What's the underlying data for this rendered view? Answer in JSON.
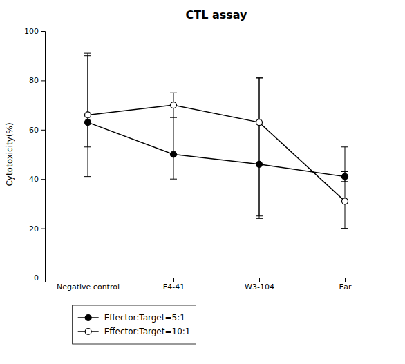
{
  "chart_data": {
    "type": "line",
    "title": "CTL assay",
    "ylabel": "Cytotoxicity(%)",
    "categories": [
      "Negative control",
      "F4-41",
      "W3-104",
      "Ear"
    ],
    "series": [
      {
        "name": "Effector:Target=5:1",
        "color": "black",
        "marker": "filled-circle",
        "values": [
          63,
          50,
          46,
          41
        ],
        "error_upper": [
          27,
          15,
          35,
          2
        ],
        "error_lower": [
          22,
          10,
          22,
          2
        ]
      },
      {
        "name": "Effector:Target=10:1",
        "color": "black",
        "marker": "open-circle",
        "values": [
          66,
          70,
          63,
          31
        ],
        "error_upper": [
          25,
          5,
          18,
          22
        ],
        "error_lower": [
          13,
          5,
          38,
          11
        ]
      }
    ],
    "ylim": [
      0,
      100
    ],
    "yticks": [
      0,
      20,
      40,
      60,
      80,
      100
    ],
    "grid": false,
    "legend": "bottom"
  }
}
